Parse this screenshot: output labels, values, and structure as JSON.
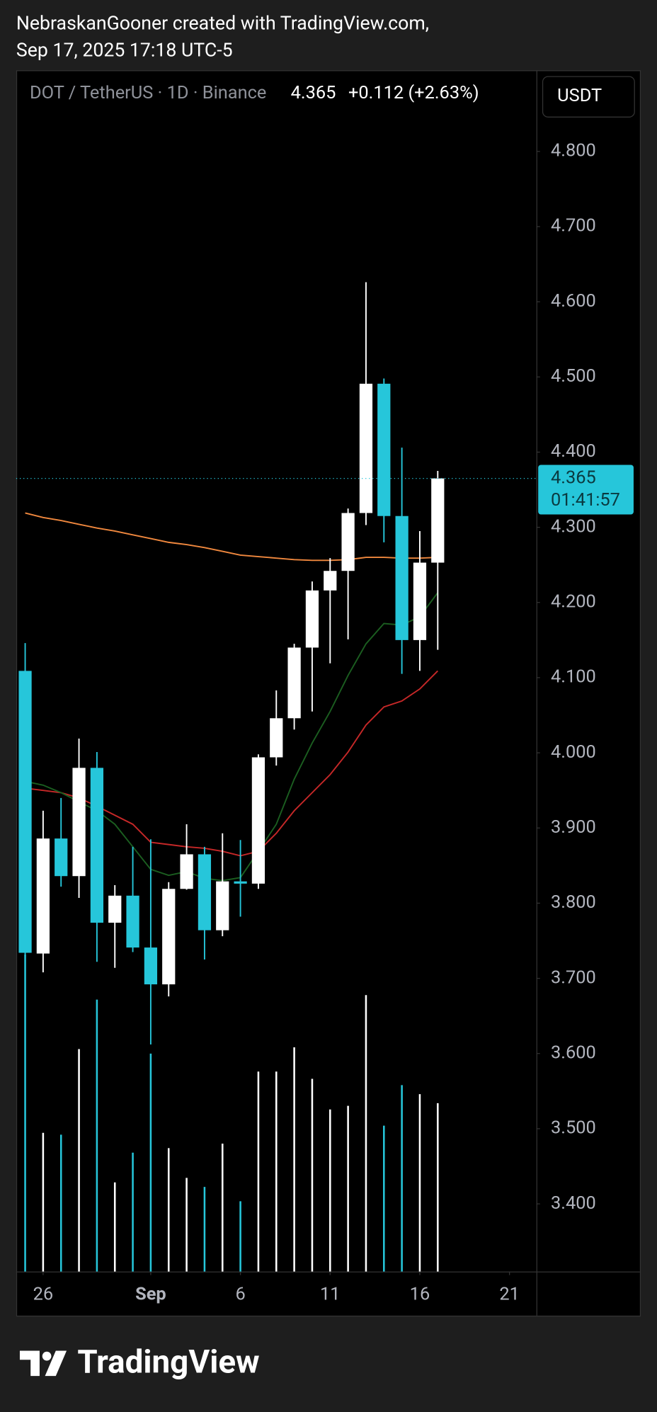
{
  "header": {
    "line1": "NebraskanGooner created with TradingView.com,",
    "line2": "Sep 17, 2025 17:18 UTC-5"
  },
  "footer": {
    "logo": "TradingView"
  },
  "chart_data": {
    "type": "candlestick",
    "symbol": "DOT / TetherUS · 1D · Binance",
    "currency": "USDT",
    "last_price": 4.365,
    "change_text": "+0.112 (+2.63%)",
    "countdown": "01:41:57",
    "up_color": "#ffffff",
    "down_color": "#26c6da",
    "grid": false,
    "x": [
      "2025-08-25",
      "2025-08-26",
      "2025-08-27",
      "2025-08-28",
      "2025-08-29",
      "2025-08-30",
      "2025-08-31",
      "2025-09-01",
      "2025-09-02",
      "2025-09-03",
      "2025-09-04",
      "2025-09-05",
      "2025-09-06",
      "2025-09-07",
      "2025-09-08",
      "2025-09-09",
      "2025-09-10",
      "2025-09-11",
      "2025-09-12",
      "2025-09-13",
      "2025-09-14",
      "2025-09-15",
      "2025-09-16",
      "2025-09-17"
    ],
    "open": [
      4.109,
      3.733,
      3.886,
      3.836,
      3.98,
      3.774,
      3.81,
      3.741,
      3.692,
      3.819,
      3.865,
      3.764,
      3.829,
      3.826,
      3.994,
      4.046,
      4.14,
      4.216,
      4.242,
      4.319,
      4.491,
      4.315,
      4.15,
      4.253
    ],
    "high": [
      4.146,
      3.923,
      3.94,
      4.019,
      4.001,
      3.824,
      3.875,
      3.885,
      3.828,
      3.905,
      3.875,
      3.893,
      3.884,
      3.998,
      4.083,
      4.145,
      4.228,
      4.259,
      4.325,
      4.626,
      4.498,
      4.406,
      4.295,
      4.375
    ],
    "low": [
      3.73,
      3.708,
      3.822,
      3.807,
      3.722,
      3.714,
      3.735,
      3.612,
      3.676,
      3.818,
      3.725,
      3.756,
      3.782,
      3.819,
      3.983,
      4.031,
      4.055,
      4.119,
      4.151,
      4.303,
      4.28,
      4.105,
      4.109,
      4.137
    ],
    "close": [
      3.734,
      3.886,
      3.836,
      3.98,
      3.774,
      3.81,
      3.741,
      3.692,
      3.819,
      3.865,
      3.764,
      3.829,
      3.826,
      3.994,
      4.046,
      4.14,
      4.216,
      4.242,
      4.319,
      4.491,
      4.315,
      4.15,
      4.253,
      4.365
    ],
    "volume": [
      352,
      154,
      152,
      247,
      302,
      99,
      132,
      242,
      137,
      104,
      94,
      142,
      78,
      222,
      222,
      249,
      214,
      180,
      184,
      307,
      162,
      207,
      197,
      187
    ],
    "series": [
      {
        "color": "#f0883e",
        "values": [
          4.319,
          4.313,
          4.309,
          4.304,
          4.299,
          4.295,
          4.29,
          4.285,
          4.28,
          4.277,
          4.273,
          4.268,
          4.263,
          4.261,
          4.259,
          4.257,
          4.256,
          4.256,
          4.257,
          4.26,
          4.26,
          4.259,
          4.259,
          4.26
        ]
      },
      {
        "color": "#c62828",
        "values": [
          3.953,
          3.95,
          3.947,
          3.94,
          3.929,
          3.917,
          3.905,
          3.881,
          3.878,
          3.875,
          3.873,
          3.869,
          3.863,
          3.869,
          3.893,
          3.923,
          3.947,
          3.971,
          4.001,
          4.037,
          4.061,
          4.069,
          4.085,
          4.109
        ]
      },
      {
        "color": "#1b5e20",
        "values": [
          3.962,
          3.957,
          3.947,
          3.935,
          3.923,
          3.905,
          3.875,
          3.845,
          3.837,
          3.842,
          3.833,
          3.83,
          3.834,
          3.869,
          3.905,
          3.965,
          4.013,
          4.055,
          4.103,
          4.145,
          4.172,
          4.17,
          4.181,
          4.213
        ]
      }
    ],
    "xlim": [
      "2025-08-25",
      "2025-09-23"
    ],
    "xticks": [
      {
        "value": "2025-08-26",
        "label": "26"
      },
      {
        "value": "2025-09-01",
        "label": "Sep"
      },
      {
        "value": "2025-09-06",
        "label": "6"
      },
      {
        "value": "2025-09-11",
        "label": "11"
      },
      {
        "value": "2025-09-16",
        "label": "16"
      },
      {
        "value": "2025-09-21",
        "label": "21"
      }
    ],
    "ylim": [
      3.31,
      4.908
    ],
    "yticks": [
      {
        "value": 4.8,
        "label": "4.800"
      },
      {
        "value": 4.7,
        "label": "4.700"
      },
      {
        "value": 4.6,
        "label": "4.600"
      },
      {
        "value": 4.5,
        "label": "4.500"
      },
      {
        "value": 4.4,
        "label": "4.400"
      },
      {
        "value": 4.3,
        "label": "4.300"
      },
      {
        "value": 4.2,
        "label": "4.200"
      },
      {
        "value": 4.1,
        "label": "4.100"
      },
      {
        "value": 4.0,
        "label": "4.000"
      },
      {
        "value": 3.9,
        "label": "3.900"
      },
      {
        "value": 3.8,
        "label": "3.800"
      },
      {
        "value": 3.7,
        "label": "3.700"
      },
      {
        "value": 3.6,
        "label": "3.600"
      },
      {
        "value": 3.5,
        "label": "3.500"
      },
      {
        "value": 3.4,
        "label": "3.400"
      }
    ]
  }
}
